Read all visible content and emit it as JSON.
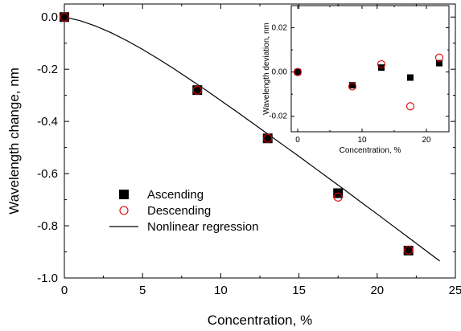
{
  "chart_data": [
    {
      "type": "scatter",
      "title": "",
      "xlabel": "Concentration, %",
      "ylabel": "Wavelength change, nm",
      "xlim": [
        0,
        25
      ],
      "ylim": [
        -1.0,
        0.05
      ],
      "xticks": [
        0,
        5,
        10,
        15,
        20,
        25
      ],
      "xtick_labels": [
        "0",
        "5",
        "10",
        "15",
        "20",
        "25"
      ],
      "yticks": [
        0.0,
        -0.2,
        -0.4,
        -0.6,
        -0.8,
        -1.0
      ],
      "ytick_labels": [
        "0.0",
        "-0.2",
        "-0.4",
        "-0.6",
        "-0.8",
        "-1.0"
      ],
      "grid": false,
      "legend_position": "bottom-left",
      "series": [
        {
          "name": "Ascending",
          "marker": "filled-square",
          "color": "#000000",
          "x": [
            0,
            8.5,
            13,
            17.5,
            22
          ],
          "y": [
            0.0,
            -0.28,
            -0.465,
            -0.675,
            -0.895
          ]
        },
        {
          "name": "Descending",
          "marker": "open-circle",
          "color": "#e00000",
          "x": [
            0,
            8.5,
            13,
            17.5,
            22
          ],
          "y": [
            0.0,
            -0.28,
            -0.465,
            -0.69,
            -0.893
          ]
        },
        {
          "name": "Nonlinear regression",
          "marker": "line",
          "color": "#000000",
          "x": [
            0,
            1,
            2,
            3,
            4,
            5,
            6,
            7,
            8,
            9,
            10,
            11,
            12,
            13,
            14,
            15,
            16,
            17,
            18,
            19,
            20,
            21,
            22,
            23,
            24
          ],
          "y": [
            0.0,
            -0.0136,
            -0.0344,
            -0.0604,
            -0.0904,
            -0.124,
            -0.16,
            -0.198,
            -0.238,
            -0.278,
            -0.32,
            -0.362,
            -0.405,
            -0.448,
            -0.491,
            -0.534,
            -0.578,
            -0.622,
            -0.666,
            -0.711,
            -0.755,
            -0.8,
            -0.845,
            -0.89,
            -0.935
          ]
        }
      ]
    },
    {
      "type": "scatter",
      "title": "",
      "xlabel": "Concentration, %",
      "ylabel": "Wavelength deviation, nm",
      "xlim": [
        -1,
        23.5
      ],
      "ylim": [
        -0.027,
        0.03
      ],
      "xticks": [
        0,
        10,
        20
      ],
      "xtick_labels": [
        "0",
        "10",
        "20"
      ],
      "yticks": [
        0.02,
        0.0,
        -0.02
      ],
      "ytick_labels": [
        "0.02",
        "0.00",
        "-0.02"
      ],
      "grid": false,
      "series": [
        {
          "name": "Ascending",
          "marker": "filled-square",
          "color": "#000000",
          "x": [
            0,
            8.5,
            13,
            17.5,
            22
          ],
          "y": [
            0.0,
            -0.006,
            0.002,
            -0.0025,
            0.004
          ]
        },
        {
          "name": "Descending",
          "marker": "open-circle",
          "color": "#e00000",
          "x": [
            0,
            8.5,
            13,
            17.5,
            22
          ],
          "y": [
            0.0,
            -0.0065,
            0.0035,
            -0.0155,
            0.0065
          ]
        }
      ]
    }
  ]
}
